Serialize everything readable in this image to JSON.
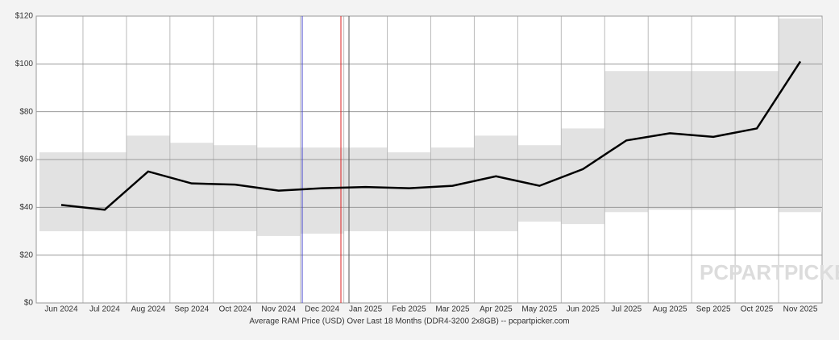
{
  "chart_data": {
    "type": "line",
    "xlabel": "Average RAM Price (USD) Over Last 18 Months (DDR4-3200 2x8GB) -- pcpartpicker.com",
    "watermark": "PCPARTPICKER",
    "categories": [
      "Jun 2024",
      "Jul 2024",
      "Aug 2024",
      "Sep 2024",
      "Oct 2024",
      "Nov 2024",
      "Dec 2024",
      "Jan 2025",
      "Feb 2025",
      "Mar 2025",
      "Apr 2025",
      "May 2025",
      "Jun 2025",
      "Jul 2025",
      "Aug 2025",
      "Sep 2025",
      "Oct 2025",
      "Nov 2025"
    ],
    "values": [
      41,
      39,
      55,
      50,
      49.5,
      47,
      48,
      48.5,
      48,
      49,
      53,
      49,
      56,
      68,
      71,
      69.5,
      73,
      101
    ],
    "band_low": [
      30,
      30,
      30,
      30,
      30,
      28,
      29,
      30,
      30,
      30,
      30,
      34,
      33,
      38,
      39,
      39,
      40,
      38
    ],
    "band_high": [
      63,
      63,
      70,
      67,
      66,
      65,
      65,
      65,
      63,
      65,
      70,
      66,
      73,
      97,
      97,
      97,
      97,
      119
    ],
    "color": "#000000",
    "band_color": "#e2e2e2",
    "ylim": [
      0,
      120
    ],
    "yticks": [
      {
        "value": 0,
        "label": "$0"
      },
      {
        "value": 20,
        "label": "$20"
      },
      {
        "value": 40,
        "label": "$40"
      },
      {
        "value": 60,
        "label": "$60"
      },
      {
        "value": 80,
        "label": "$80"
      },
      {
        "value": 100,
        "label": "$100"
      },
      {
        "value": 120,
        "label": "$120"
      }
    ],
    "grid": true
  }
}
